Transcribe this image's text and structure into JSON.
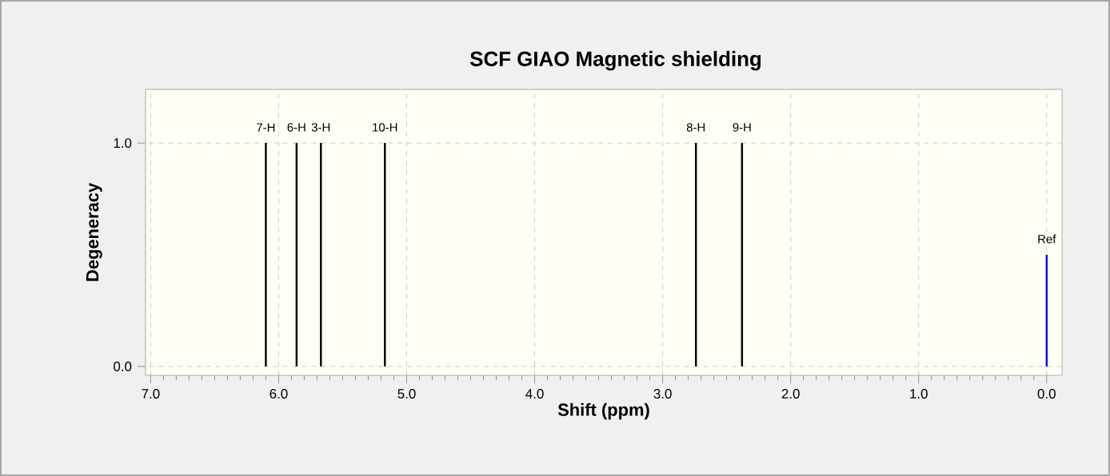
{
  "chart_data": {
    "type": "bar",
    "title": "SCF GIAO Magnetic shielding",
    "xlabel": "Shift (ppm)",
    "ylabel": "Degeneracy",
    "x": [
      6.1,
      5.86,
      5.67,
      5.17,
      2.74,
      2.38,
      0.0
    ],
    "values": [
      1,
      1,
      1,
      1,
      1,
      1,
      0.5
    ],
    "colors": [
      "#000000",
      "#000000",
      "#000000",
      "#000000",
      "#000000",
      "#000000",
      "#0000ff"
    ],
    "xlim": [
      7.04,
      -0.12
    ],
    "ylim": [
      -0.04,
      1.24
    ],
    "xticks": [
      {
        "value": 7,
        "label": "7.0"
      },
      {
        "value": 6,
        "label": "6.0"
      },
      {
        "value": 5,
        "label": "5.0"
      },
      {
        "value": 4,
        "label": "4.0"
      },
      {
        "value": 3,
        "label": "3.0"
      },
      {
        "value": 2,
        "label": "2.0"
      },
      {
        "value": 1,
        "label": "1.0"
      },
      {
        "value": 0,
        "label": "0.0"
      }
    ],
    "yticks": [
      {
        "value": 0,
        "label": "0.0"
      },
      {
        "value": 1,
        "label": "1.0"
      }
    ],
    "grid": true,
    "annotations": [
      {
        "text": "7-H",
        "x": 6.1,
        "y": 1
      },
      {
        "text": "6-H",
        "x": 5.86,
        "y": 1
      },
      {
        "text": "3-H",
        "x": 5.67,
        "y": 1
      },
      {
        "text": "10-H",
        "x": 5.17,
        "y": 1
      },
      {
        "text": "8-H",
        "x": 2.74,
        "y": 1
      },
      {
        "text": "9-H",
        "x": 2.38,
        "y": 1
      },
      {
        "text": "Ref",
        "x": 0.0,
        "y": 0.5
      }
    ]
  }
}
